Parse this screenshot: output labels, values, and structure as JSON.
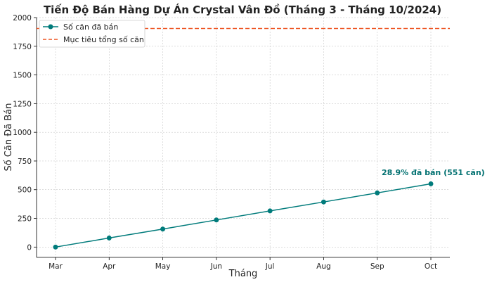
{
  "chart_data": {
    "type": "line",
    "title": "Tiến Độ Bán Hàng Dự Án Crystal Vân Đồ (Tháng 3 - Tháng 10/2024)",
    "xlabel": "Tháng",
    "ylabel": "Số Căn Đã Bán",
    "categories": [
      "Mar",
      "Apr",
      "May",
      "Jun",
      "Jul",
      "Aug",
      "Sep",
      "Oct"
    ],
    "series": [
      {
        "name": "Số căn đã bán",
        "values": [
          0,
          79,
          157,
          236,
          315,
          393,
          472,
          551
        ],
        "color": "#007b7b"
      }
    ],
    "target": {
      "name": "Mục tiêu tổng số căn",
      "value": 1905,
      "color": "#ee5522"
    },
    "ylim": [
      -90,
      2000
    ],
    "yticks": [
      0,
      250,
      500,
      750,
      1000,
      1250,
      1500,
      1750,
      2000
    ],
    "grid": true,
    "legend_position": "top-left",
    "annotation": {
      "text": "28.9% đã bán (551 căn)",
      "color": "#007070"
    }
  }
}
